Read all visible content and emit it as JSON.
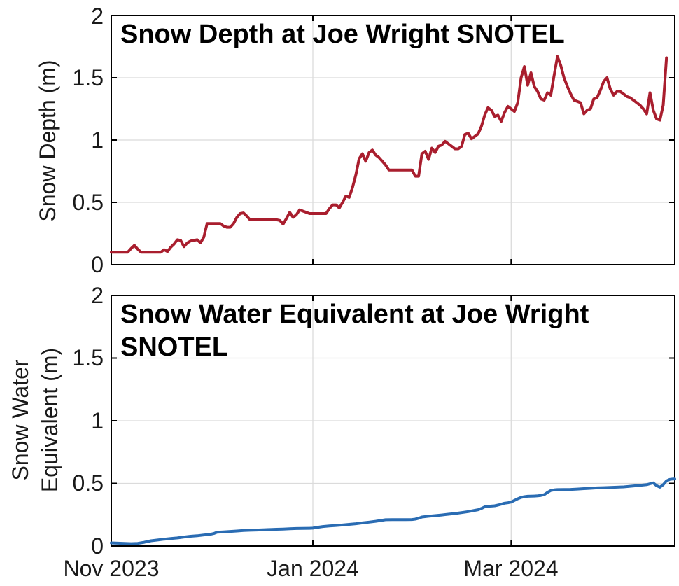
{
  "figure": {
    "background": "#ffffff",
    "text_color": "#1a1a1a",
    "title_color": "#000000",
    "axis_color": "#000000",
    "grid_color": "#dbdbdb"
  },
  "chart_data": [
    {
      "type": "line",
      "title": "Snow Depth at Joe Wright SNOTEL",
      "ylabel": "Snow Depth (m)",
      "xlabel": "",
      "x_axis_unit": "days since Nov 1 2023",
      "xlim": [
        0,
        170.5
      ],
      "ylim": [
        0,
        2
      ],
      "yticks": [
        0,
        0.5,
        1,
        1.5,
        2
      ],
      "yticklabels": [
        "0",
        "0.5",
        "1",
        "1.5",
        "2"
      ],
      "xticks": [
        0,
        61,
        121
      ],
      "xticklabels": [
        "Nov 2023",
        "Jan 2024",
        "Mar 2024"
      ],
      "show_xticklabels": false,
      "grid": true,
      "legend": "none",
      "line_color": "#a91e2e",
      "line_width": 4,
      "series": [
        {
          "name": "snow-depth",
          "points": [
            [
              0,
              0.1
            ],
            [
              2,
              0.1
            ],
            [
              4,
              0.1
            ],
            [
              5,
              0.1
            ],
            [
              6,
              0.13
            ],
            [
              7,
              0.155
            ],
            [
              8,
              0.125
            ],
            [
              9,
              0.1
            ],
            [
              11,
              0.1
            ],
            [
              13,
              0.1
            ],
            [
              15,
              0.1
            ],
            [
              16,
              0.12
            ],
            [
              17,
              0.105
            ],
            [
              18,
              0.14
            ],
            [
              19,
              0.165
            ],
            [
              20,
              0.2
            ],
            [
              21,
              0.195
            ],
            [
              22,
              0.145
            ],
            [
              23,
              0.175
            ],
            [
              24,
              0.19
            ],
            [
              25,
              0.195
            ],
            [
              26,
              0.2
            ],
            [
              27,
              0.175
            ],
            [
              28,
              0.22
            ],
            [
              29,
              0.33
            ],
            [
              30,
              0.33
            ],
            [
              32,
              0.33
            ],
            [
              33,
              0.33
            ],
            [
              34,
              0.31
            ],
            [
              35,
              0.3
            ],
            [
              36,
              0.3
            ],
            [
              37,
              0.33
            ],
            [
              38,
              0.38
            ],
            [
              39,
              0.41
            ],
            [
              40,
              0.415
            ],
            [
              41,
              0.39
            ],
            [
              42,
              0.36
            ],
            [
              44,
              0.36
            ],
            [
              46,
              0.36
            ],
            [
              48,
              0.36
            ],
            [
              50,
              0.36
            ],
            [
              51,
              0.355
            ],
            [
              52,
              0.325
            ],
            [
              53,
              0.37
            ],
            [
              54,
              0.42
            ],
            [
              55,
              0.38
            ],
            [
              56,
              0.4
            ],
            [
              57,
              0.44
            ],
            [
              58,
              0.43
            ],
            [
              59,
              0.42
            ],
            [
              60,
              0.41
            ],
            [
              61,
              0.41
            ],
            [
              63,
              0.41
            ],
            [
              65,
              0.41
            ],
            [
              66,
              0.45
            ],
            [
              67,
              0.48
            ],
            [
              68,
              0.48
            ],
            [
              69,
              0.455
            ],
            [
              70,
              0.5
            ],
            [
              71,
              0.55
            ],
            [
              72,
              0.54
            ],
            [
              73,
              0.62
            ],
            [
              74,
              0.72
            ],
            [
              75,
              0.85
            ],
            [
              76,
              0.89
            ],
            [
              77,
              0.83
            ],
            [
              78,
              0.9
            ],
            [
              79,
              0.92
            ],
            [
              80,
              0.88
            ],
            [
              81,
              0.86
            ],
            [
              82,
              0.83
            ],
            [
              83,
              0.8
            ],
            [
              84,
              0.76
            ],
            [
              86,
              0.76
            ],
            [
              88,
              0.76
            ],
            [
              90,
              0.76
            ],
            [
              91,
              0.76
            ],
            [
              92,
              0.71
            ],
            [
              93,
              0.71
            ],
            [
              94,
              0.89
            ],
            [
              95,
              0.91
            ],
            [
              96,
              0.845
            ],
            [
              97,
              0.935
            ],
            [
              98,
              0.9
            ],
            [
              99,
              0.95
            ],
            [
              100,
              0.96
            ],
            [
              101,
              0.99
            ],
            [
              102,
              0.97
            ],
            [
              103,
              0.95
            ],
            [
              104,
              0.93
            ],
            [
              105,
              0.93
            ],
            [
              106,
              0.95
            ],
            [
              107,
              1.045
            ],
            [
              108,
              1.055
            ],
            [
              109,
              1.01
            ],
            [
              110,
              1.03
            ],
            [
              111,
              1.05
            ],
            [
              112,
              1.11
            ],
            [
              113,
              1.2
            ],
            [
              114,
              1.26
            ],
            [
              115,
              1.24
            ],
            [
              116,
              1.19
            ],
            [
              117,
              1.2
            ],
            [
              118,
              1.15
            ],
            [
              119,
              1.22
            ],
            [
              120,
              1.27
            ],
            [
              121,
              1.25
            ],
            [
              122,
              1.23
            ],
            [
              123,
              1.3
            ],
            [
              124,
              1.5
            ],
            [
              125,
              1.59
            ],
            [
              126,
              1.44
            ],
            [
              127,
              1.54
            ],
            [
              128,
              1.43
            ],
            [
              129,
              1.39
            ],
            [
              130,
              1.33
            ],
            [
              131,
              1.32
            ],
            [
              132,
              1.38
            ],
            [
              133,
              1.36
            ],
            [
              134,
              1.52
            ],
            [
              135,
              1.67
            ],
            [
              136,
              1.6
            ],
            [
              137,
              1.5
            ],
            [
              138,
              1.43
            ],
            [
              139,
              1.37
            ],
            [
              140,
              1.32
            ],
            [
              141,
              1.31
            ],
            [
              142,
              1.3
            ],
            [
              143,
              1.21
            ],
            [
              144,
              1.24
            ],
            [
              145,
              1.25
            ],
            [
              146,
              1.33
            ],
            [
              147,
              1.34
            ],
            [
              148,
              1.4
            ],
            [
              149,
              1.47
            ],
            [
              150,
              1.5
            ],
            [
              151,
              1.41
            ],
            [
              152,
              1.36
            ],
            [
              153,
              1.39
            ],
            [
              154,
              1.39
            ],
            [
              155,
              1.37
            ],
            [
              156,
              1.35
            ],
            [
              157,
              1.34
            ],
            [
              158,
              1.32
            ],
            [
              159,
              1.3
            ],
            [
              160,
              1.28
            ],
            [
              161,
              1.25
            ],
            [
              162,
              1.21
            ],
            [
              163,
              1.38
            ],
            [
              164,
              1.24
            ],
            [
              165,
              1.17
            ],
            [
              166,
              1.16
            ],
            [
              167,
              1.28
            ],
            [
              168,
              1.66
            ]
          ]
        }
      ]
    },
    {
      "type": "line",
      "title": "Snow Water Equivalent at Joe Wright SNOTEL",
      "ylabel": "Snow Water Equivalent (m)",
      "ylabel_lines": [
        "Snow Water",
        "Equivalent (m)"
      ],
      "xlabel": "",
      "x_axis_unit": "days since Nov 1 2023",
      "xlim": [
        0,
        170.5
      ],
      "ylim": [
        0,
        2
      ],
      "yticks": [
        0,
        0.5,
        1,
        1.5,
        2
      ],
      "yticklabels": [
        "0",
        "0.5",
        "1",
        "1.5",
        "2"
      ],
      "xticks": [
        0,
        61,
        121
      ],
      "xticklabels": [
        "Nov 2023",
        "Jan 2024",
        "Mar 2024"
      ],
      "show_xticklabels": true,
      "grid": true,
      "legend": "none",
      "line_color": "#2a6cb3",
      "line_width": 4,
      "series": [
        {
          "name": "snow-water-equivalent",
          "points": [
            [
              0,
              0.025
            ],
            [
              2,
              0.023
            ],
            [
              4,
              0.021
            ],
            [
              6,
              0.019
            ],
            [
              8,
              0.021
            ],
            [
              10,
              0.03
            ],
            [
              12,
              0.042
            ],
            [
              14,
              0.048
            ],
            [
              16,
              0.055
            ],
            [
              18,
              0.06
            ],
            [
              20,
              0.065
            ],
            [
              22,
              0.072
            ],
            [
              24,
              0.078
            ],
            [
              26,
              0.082
            ],
            [
              28,
              0.088
            ],
            [
              30,
              0.094
            ],
            [
              31,
              0.1
            ],
            [
              32,
              0.11
            ],
            [
              34,
              0.113
            ],
            [
              36,
              0.117
            ],
            [
              38,
              0.12
            ],
            [
              40,
              0.124
            ],
            [
              42,
              0.126
            ],
            [
              44,
              0.128
            ],
            [
              46,
              0.13
            ],
            [
              48,
              0.132
            ],
            [
              50,
              0.134
            ],
            [
              52,
              0.136
            ],
            [
              54,
              0.138
            ],
            [
              56,
              0.14
            ],
            [
              58,
              0.141
            ],
            [
              60,
              0.142
            ],
            [
              61,
              0.143
            ],
            [
              62,
              0.148
            ],
            [
              64,
              0.156
            ],
            [
              66,
              0.161
            ],
            [
              68,
              0.164
            ],
            [
              70,
              0.168
            ],
            [
              72,
              0.173
            ],
            [
              74,
              0.178
            ],
            [
              76,
              0.185
            ],
            [
              78,
              0.191
            ],
            [
              80,
              0.198
            ],
            [
              82,
              0.206
            ],
            [
              83,
              0.21
            ],
            [
              85,
              0.211
            ],
            [
              87,
              0.211
            ],
            [
              89,
              0.211
            ],
            [
              91,
              0.212
            ],
            [
              92,
              0.215
            ],
            [
              93,
              0.222
            ],
            [
              94,
              0.232
            ],
            [
              96,
              0.238
            ],
            [
              98,
              0.243
            ],
            [
              100,
              0.248
            ],
            [
              102,
              0.254
            ],
            [
              104,
              0.26
            ],
            [
              106,
              0.267
            ],
            [
              108,
              0.275
            ],
            [
              110,
              0.285
            ],
            [
              111,
              0.29
            ],
            [
              112,
              0.3
            ],
            [
              113,
              0.313
            ],
            [
              114,
              0.318
            ],
            [
              115,
              0.319
            ],
            [
              116,
              0.321
            ],
            [
              117,
              0.327
            ],
            [
              118,
              0.334
            ],
            [
              119,
              0.342
            ],
            [
              120,
              0.345
            ],
            [
              121,
              0.351
            ],
            [
              122,
              0.364
            ],
            [
              123,
              0.377
            ],
            [
              124,
              0.388
            ],
            [
              125,
              0.394
            ],
            [
              126,
              0.397
            ],
            [
              127,
              0.398
            ],
            [
              128,
              0.399
            ],
            [
              129,
              0.401
            ],
            [
              130,
              0.404
            ],
            [
              131,
              0.41
            ],
            [
              132,
              0.428
            ],
            [
              133,
              0.443
            ],
            [
              134,
              0.448
            ],
            [
              135,
              0.45
            ],
            [
              137,
              0.451
            ],
            [
              139,
              0.452
            ],
            [
              141,
              0.455
            ],
            [
              143,
              0.458
            ],
            [
              145,
              0.461
            ],
            [
              147,
              0.464
            ],
            [
              149,
              0.466
            ],
            [
              151,
              0.468
            ],
            [
              153,
              0.47
            ],
            [
              155,
              0.472
            ],
            [
              157,
              0.477
            ],
            [
              159,
              0.482
            ],
            [
              161,
              0.487
            ],
            [
              162,
              0.49
            ],
            [
              163,
              0.497
            ],
            [
              164,
              0.504
            ],
            [
              165,
              0.482
            ],
            [
              166,
              0.47
            ],
            [
              167,
              0.49
            ],
            [
              168,
              0.52
            ],
            [
              169,
              0.532
            ],
            [
              170,
              0.535
            ],
            [
              170.5,
              0.535
            ]
          ]
        }
      ]
    }
  ]
}
